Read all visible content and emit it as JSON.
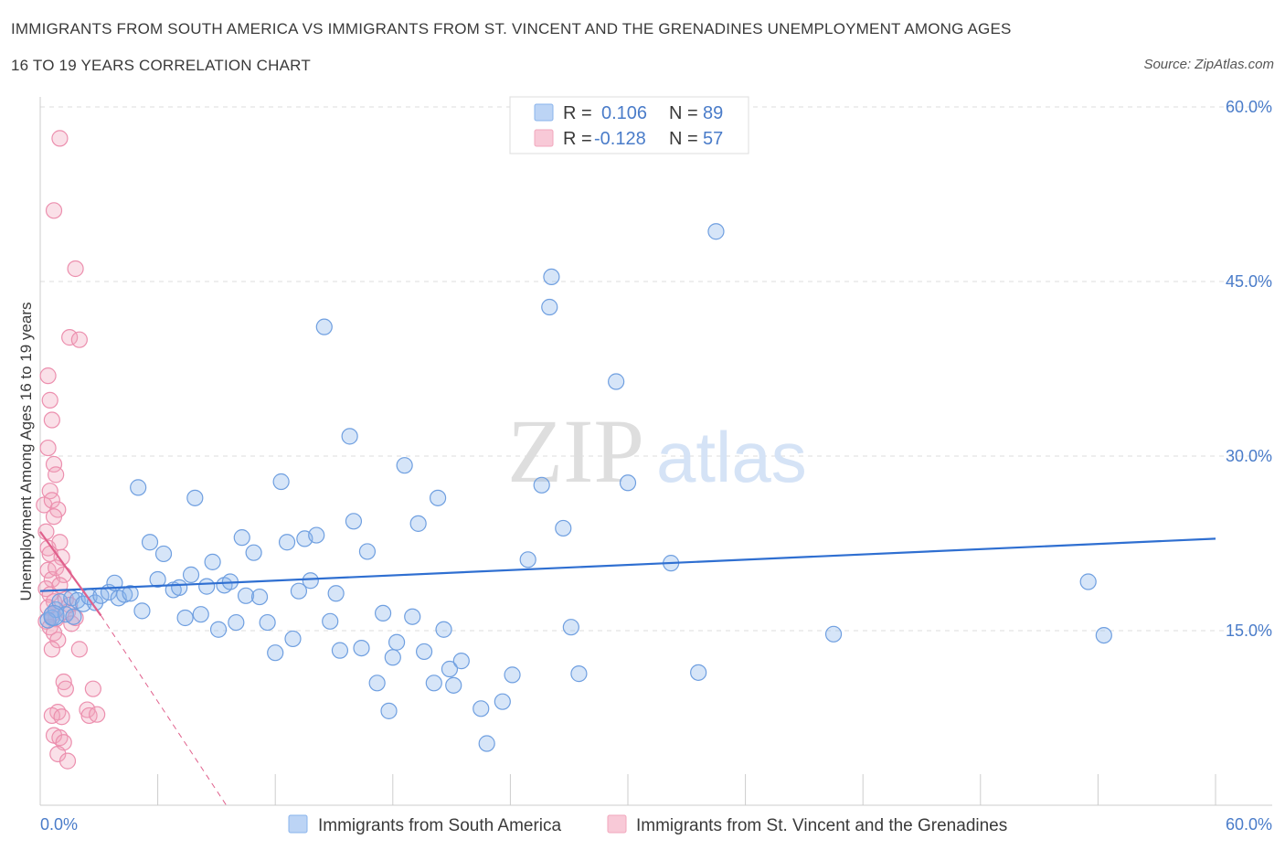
{
  "title_line1": "IMMIGRANTS FROM SOUTH AMERICA VS IMMIGRANTS FROM ST. VINCENT AND THE GRENADINES UNEMPLOYMENT AMONG AGES",
  "title_line2": "16 TO 19 YEARS CORRELATION CHART",
  "source": "Source: ZipAtlas.com",
  "watermark": {
    "zip": "ZIP",
    "atlas": "atlas"
  },
  "colors": {
    "blue": "#8ab4ec",
    "blue_line": "#2f6fd1",
    "pink": "#f2a7bd",
    "pink_line": "#e0608c",
    "accent_text": "#4a7cc9"
  },
  "stats": [
    {
      "r_label": "R =",
      "r_value": "0.106",
      "n_label": "N =",
      "n_value": "89",
      "color": "#8ab4ec"
    },
    {
      "r_label": "R =",
      "r_value": "-0.128",
      "n_label": "N =",
      "n_value": "57",
      "color": "#f2a7bd"
    }
  ],
  "chart_data": {
    "type": "scatter",
    "title": "IMMIGRANTS FROM SOUTH AMERICA VS IMMIGRANTS FROM ST. VINCENT AND THE GRENADINES UNEMPLOYMENT AMONG AGES 16 TO 19 YEARS CORRELATION CHART",
    "xlabel": "",
    "ylabel": "Unemployment Among Ages 16 to 19 years",
    "xlim": [
      0,
      60
    ],
    "ylim": [
      0,
      60
    ],
    "x_tick_labels": [
      "0.0%",
      "60.0%"
    ],
    "y_tick_labels": [
      "15.0%",
      "30.0%",
      "45.0%",
      "60.0%"
    ],
    "y_ticks": [
      15,
      30,
      45,
      60
    ],
    "grid": "horizontal dashed",
    "legend_position": "bottom",
    "series": [
      {
        "name": "Immigrants from South America",
        "color": "#8ab4ec",
        "trend": {
          "x": [
            0,
            60
          ],
          "y": [
            18.4,
            22.9
          ],
          "style": "solid"
        },
        "points": [
          [
            0.6,
            16.1
          ],
          [
            0.8,
            16.8
          ],
          [
            1.0,
            17.5
          ],
          [
            1.3,
            16.4
          ],
          [
            1.6,
            17.8
          ],
          [
            1.9,
            17.6
          ],
          [
            2.2,
            17.3
          ],
          [
            2.5,
            17.9
          ],
          [
            2.8,
            17.4
          ],
          [
            3.1,
            18.0
          ],
          [
            3.5,
            18.3
          ],
          [
            3.8,
            19.1
          ],
          [
            4.0,
            17.8
          ],
          [
            4.3,
            18.1
          ],
          [
            4.6,
            18.2
          ],
          [
            5.0,
            27.3
          ],
          [
            5.2,
            16.7
          ],
          [
            5.6,
            22.6
          ],
          [
            6.0,
            19.4
          ],
          [
            6.3,
            21.6
          ],
          [
            6.8,
            18.5
          ],
          [
            7.1,
            18.7
          ],
          [
            7.4,
            16.1
          ],
          [
            7.7,
            19.8
          ],
          [
            7.9,
            26.4
          ],
          [
            8.2,
            16.4
          ],
          [
            8.5,
            18.8
          ],
          [
            8.8,
            20.9
          ],
          [
            9.1,
            15.1
          ],
          [
            9.4,
            18.9
          ],
          [
            9.7,
            19.2
          ],
          [
            10.0,
            15.7
          ],
          [
            10.3,
            23.0
          ],
          [
            10.5,
            18.0
          ],
          [
            10.9,
            21.7
          ],
          [
            11.2,
            17.9
          ],
          [
            11.6,
            15.7
          ],
          [
            12.0,
            13.1
          ],
          [
            12.3,
            27.8
          ],
          [
            12.6,
            22.6
          ],
          [
            12.9,
            14.3
          ],
          [
            13.2,
            18.4
          ],
          [
            13.5,
            22.9
          ],
          [
            13.8,
            19.3
          ],
          [
            14.1,
            23.2
          ],
          [
            14.5,
            41.1
          ],
          [
            14.8,
            15.8
          ],
          [
            15.1,
            18.2
          ],
          [
            15.3,
            13.3
          ],
          [
            15.8,
            31.7
          ],
          [
            16.0,
            24.4
          ],
          [
            16.4,
            13.5
          ],
          [
            16.7,
            21.8
          ],
          [
            17.2,
            10.5
          ],
          [
            17.5,
            16.5
          ],
          [
            17.8,
            8.1
          ],
          [
            18.0,
            12.7
          ],
          [
            18.2,
            14.0
          ],
          [
            18.6,
            29.2
          ],
          [
            19.0,
            16.2
          ],
          [
            19.3,
            24.2
          ],
          [
            19.6,
            13.2
          ],
          [
            20.1,
            10.5
          ],
          [
            20.3,
            26.4
          ],
          [
            20.6,
            15.1
          ],
          [
            20.9,
            11.7
          ],
          [
            21.1,
            10.3
          ],
          [
            21.5,
            12.4
          ],
          [
            22.5,
            8.3
          ],
          [
            22.8,
            5.3
          ],
          [
            23.6,
            8.9
          ],
          [
            24.1,
            11.2
          ],
          [
            24.9,
            21.1
          ],
          [
            25.6,
            27.5
          ],
          [
            26.0,
            42.8
          ],
          [
            26.1,
            45.4
          ],
          [
            26.7,
            23.8
          ],
          [
            27.1,
            15.3
          ],
          [
            27.5,
            11.3
          ],
          [
            29.4,
            36.4
          ],
          [
            30.0,
            27.7
          ],
          [
            32.2,
            20.8
          ],
          [
            33.6,
            11.4
          ],
          [
            34.5,
            49.3
          ],
          [
            40.5,
            14.7
          ],
          [
            53.5,
            19.2
          ],
          [
            54.3,
            14.6
          ],
          [
            0.4,
            15.9
          ],
          [
            1.7,
            16.2
          ]
        ]
      },
      {
        "name": "Immigrants from St. Vincent and the Grenadines",
        "color": "#f2a7bd",
        "trend": {
          "x": [
            0,
            3.1
          ],
          "y": [
            23.5,
            16.3
          ],
          "style": "solid",
          "extension": {
            "x": [
              3.1,
              9.5
            ],
            "y": [
              16.3,
              0
            ],
            "style": "dashed"
          }
        },
        "points": [
          [
            0.2,
            25.8
          ],
          [
            0.3,
            23.5
          ],
          [
            0.4,
            22.1
          ],
          [
            0.5,
            21.6
          ],
          [
            0.4,
            20.2
          ],
          [
            0.6,
            19.4
          ],
          [
            0.3,
            18.6
          ],
          [
            0.5,
            18.1
          ],
          [
            0.7,
            17.5
          ],
          [
            0.4,
            17.0
          ],
          [
            0.6,
            16.4
          ],
          [
            0.8,
            16.0
          ],
          [
            0.3,
            15.8
          ],
          [
            0.5,
            15.3
          ],
          [
            0.7,
            14.8
          ],
          [
            0.9,
            14.2
          ],
          [
            0.6,
            13.4
          ],
          [
            0.4,
            36.9
          ],
          [
            0.5,
            34.8
          ],
          [
            0.6,
            33.1
          ],
          [
            0.4,
            30.7
          ],
          [
            0.7,
            29.3
          ],
          [
            0.8,
            28.4
          ],
          [
            0.5,
            27.0
          ],
          [
            0.6,
            26.2
          ],
          [
            0.9,
            25.4
          ],
          [
            0.7,
            24.8
          ],
          [
            1.0,
            22.6
          ],
          [
            1.1,
            21.3
          ],
          [
            0.8,
            20.4
          ],
          [
            1.2,
            19.8
          ],
          [
            1.0,
            18.9
          ],
          [
            1.3,
            17.7
          ],
          [
            1.5,
            17.2
          ],
          [
            1.4,
            16.6
          ],
          [
            1.6,
            15.6
          ],
          [
            1.8,
            16.1
          ],
          [
            2.0,
            13.4
          ],
          [
            1.2,
            10.6
          ],
          [
            1.3,
            10.0
          ],
          [
            0.9,
            8.0
          ],
          [
            0.6,
            7.7
          ],
          [
            1.1,
            7.6
          ],
          [
            0.7,
            6.0
          ],
          [
            1.0,
            5.8
          ],
          [
            1.2,
            5.4
          ],
          [
            0.9,
            4.4
          ],
          [
            1.4,
            3.8
          ],
          [
            2.4,
            8.2
          ],
          [
            2.5,
            7.7
          ],
          [
            2.7,
            10.0
          ],
          [
            2.9,
            7.8
          ],
          [
            1.0,
            57.3
          ],
          [
            0.7,
            51.1
          ],
          [
            1.8,
            46.1
          ],
          [
            1.5,
            40.2
          ],
          [
            2.0,
            40.0
          ]
        ]
      }
    ]
  },
  "legend": [
    {
      "label": "Immigrants from South America",
      "color": "#8ab4ec"
    },
    {
      "label": "Immigrants from St. Vincent and the Grenadines",
      "color": "#f2a7bd"
    }
  ]
}
